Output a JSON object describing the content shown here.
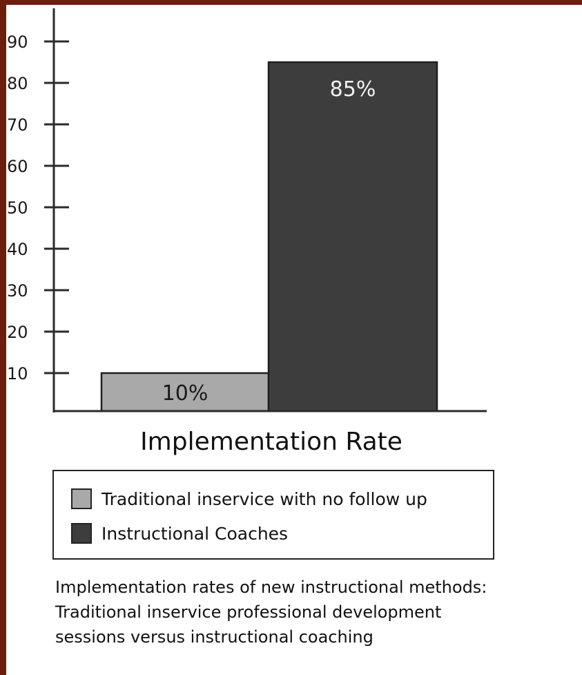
{
  "chart_data": {
    "type": "bar",
    "categories": [
      "Traditional inservice with no follow up",
      "Instructional Coaches"
    ],
    "values": [
      10,
      85
    ],
    "data_labels": [
      "10%",
      "85%"
    ],
    "yticks": [
      10,
      20,
      30,
      40,
      50,
      60,
      70,
      80,
      90
    ],
    "ylim": [
      0,
      100
    ],
    "xlabel": "Implementation Rate",
    "ylabel": "",
    "grid": false,
    "legend_position": "bottom",
    "colors": [
      "#a9a9a9",
      "#3d3d3d"
    ],
    "label_colors": [
      "#1a1a1a",
      "#f2f2f2"
    ]
  },
  "legend": {
    "items": [
      {
        "label": "Traditional inservice with no follow up",
        "color": "#a9a9a9"
      },
      {
        "label": "Instructional Coaches",
        "color": "#3d3d3d"
      }
    ]
  },
  "caption": {
    "lines": [
      "Implementation rates of new instructional methods:",
      "Traditional inservice professional development",
      "sessions versus instructional coaching"
    ]
  },
  "colors": {
    "frame": "#6b1d0e",
    "panel": "#ffffff"
  }
}
